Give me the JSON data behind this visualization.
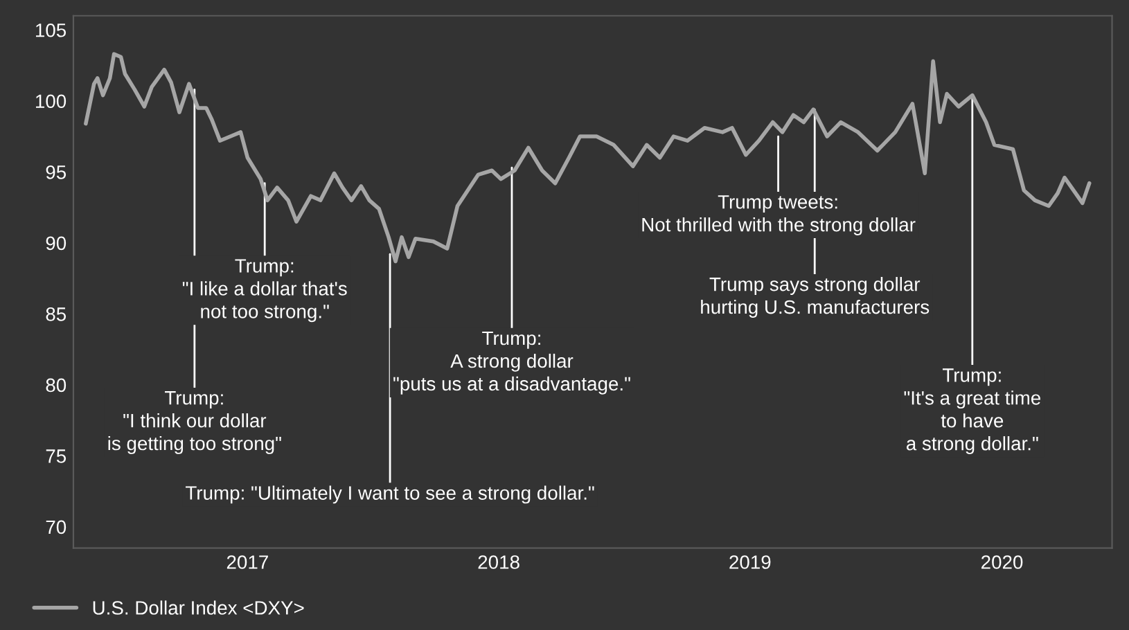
{
  "chart_data": {
    "type": "line",
    "x": [
      "2016-11-09",
      "2016-11-21",
      "2016-11-26",
      "2016-12-04",
      "2016-12-14",
      "2016-12-20",
      "2016-12-30",
      "2017-01-05",
      "2017-01-19",
      "2017-02-02",
      "2017-02-13",
      "2017-03-03",
      "2017-03-13",
      "2017-03-25",
      "2017-04-08",
      "2017-04-21",
      "2017-05-03",
      "2017-05-11",
      "2017-05-23",
      "2017-06-12",
      "2017-06-22",
      "2017-07-02",
      "2017-07-21",
      "2017-07-31",
      "2017-08-14",
      "2017-08-30",
      "2017-09-11",
      "2017-10-02",
      "2017-10-16",
      "2017-11-05",
      "2017-11-17",
      "2017-11-30",
      "2017-12-14",
      "2017-12-26",
      "2018-01-09",
      "2018-01-23",
      "2018-02-02",
      "2018-02-11",
      "2018-02-21",
      "2018-03-03",
      "2018-03-29",
      "2018-04-18",
      "2018-05-03",
      "2018-06-02",
      "2018-06-22",
      "2018-07-05",
      "2018-07-25",
      "2018-08-14",
      "2018-09-03",
      "2018-09-22",
      "2018-10-12",
      "2018-10-28",
      "2018-11-21",
      "2018-12-16",
      "2019-01-13",
      "2019-02-02",
      "2019-02-21",
      "2019-03-13",
      "2019-04-02",
      "2019-04-27",
      "2019-05-23",
      "2019-06-06",
      "2019-06-26",
      "2019-07-15",
      "2019-08-04",
      "2019-08-18",
      "2019-09-03",
      "2019-09-18",
      "2019-10-02",
      "2019-10-22",
      "2019-11-11",
      "2019-12-06",
      "2020-01-03",
      "2020-01-29",
      "2020-02-23",
      "2020-03-12",
      "2020-03-24",
      "2020-04-03",
      "2020-04-13",
      "2020-04-30",
      "2020-05-20",
      "2020-06-09",
      "2020-06-21",
      "2020-07-18",
      "2020-08-03",
      "2020-08-19",
      "2020-09-08",
      "2020-09-21",
      "2020-10-01",
      "2020-10-17",
      "2020-10-27",
      "2020-11-06"
    ],
    "series": [
      {
        "name": "U.S. Dollar Index <DXY>",
        "color": "#a6a6a6",
        "values": [
          98.4,
          101.2,
          101.6,
          100.4,
          101.6,
          103.3,
          103.1,
          101.9,
          100.8,
          99.6,
          101.0,
          102.2,
          101.3,
          99.2,
          101.2,
          99.5,
          99.5,
          98.7,
          97.2,
          97.6,
          97.8,
          96.0,
          94.5,
          93.0,
          93.9,
          93.0,
          91.5,
          93.3,
          93.0,
          94.9,
          93.9,
          93.0,
          94.0,
          93.0,
          92.4,
          90.4,
          88.7,
          90.4,
          89.0,
          90.3,
          90.1,
          89.6,
          92.6,
          94.8,
          95.1,
          94.5,
          95.1,
          96.7,
          95.1,
          94.2,
          96.0,
          97.5,
          97.5,
          96.9,
          95.4,
          96.9,
          96.0,
          97.5,
          97.2,
          98.1,
          97.8,
          98.1,
          96.2,
          97.2,
          98.5,
          97.8,
          99.0,
          98.5,
          99.4,
          97.5,
          98.5,
          97.8,
          96.5,
          97.8,
          99.8,
          94.9,
          102.8,
          98.5,
          100.5,
          99.6,
          100.4,
          98.5,
          96.9,
          96.6,
          93.7,
          93.0,
          92.6,
          93.5,
          94.6,
          93.5,
          92.8,
          94.2
        ]
      }
    ],
    "xlim": [
      "2016-10-22",
      "2020-12-09"
    ],
    "xticks": [
      {
        "value": "2017-07-02",
        "label": "2017"
      },
      {
        "value": "2018-07-02",
        "label": "2018"
      },
      {
        "value": "2019-07-02",
        "label": "2019"
      },
      {
        "value": "2020-07-02",
        "label": "2020"
      }
    ],
    "ylim": [
      68.5,
      106
    ],
    "yticks": [
      70,
      75,
      80,
      85,
      90,
      95,
      100,
      105
    ],
    "grid": false,
    "legend": "bottom left",
    "annotations": [
      {
        "text": "Trump:\n\"I think our dollar\nis getting too strong\"",
        "x": "2017-04-16",
        "y": 100.8
      },
      {
        "text": "Trump:\n\"I like a dollar that's\nnot too strong.\"",
        "x": "2017-07-27",
        "y": 94.2
      },
      {
        "text": "Trump: \"Ultimately I want to see a strong dollar.\"",
        "x": "2018-01-25",
        "y": 89.2
      },
      {
        "text": "Trump:\nA strong dollar\n\"puts us at a disadvantage.\"",
        "x": "2018-07-21",
        "y": 95.3
      },
      {
        "text": "Trump tweets:\nNot thrilled with the strong dollar",
        "x": "2019-08-12",
        "y": 97.5
      },
      {
        "text": "Trump says strong dollar\nhurting U.S. manufacturers",
        "x": "2019-10-04",
        "y": 99.4
      },
      {
        "text": "Trump:\n\"It's a great time\nto have\na strong dollar.\"",
        "x": "2020-05-20",
        "y": 100.4
      }
    ]
  }
}
